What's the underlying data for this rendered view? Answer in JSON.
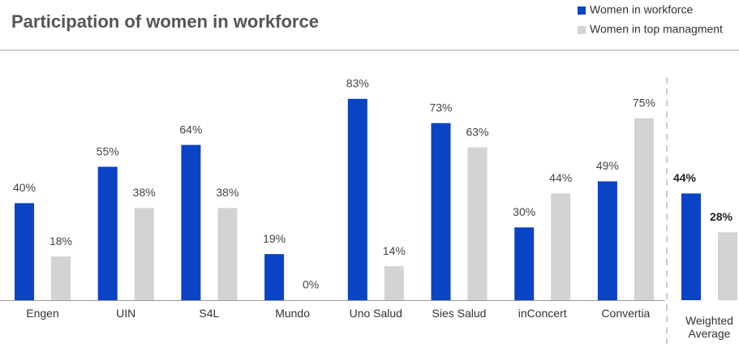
{
  "chart_data": {
    "type": "bar",
    "title": "Participation of women in workforce",
    "categories": [
      "Engen",
      "UIN",
      "S4L",
      "Mundo",
      "Uno Salud",
      "Sies Salud",
      "inConcert",
      "Convertia",
      "Weighted Average"
    ],
    "series": [
      {
        "name": "Women in workforce",
        "color": "#0a43c4",
        "values": [
          40,
          55,
          64,
          19,
          83,
          73,
          30,
          49,
          44
        ],
        "value_labels": [
          "40%",
          "55%",
          "64%",
          "19%",
          "83%",
          "73%",
          "30%",
          "49%",
          "44%"
        ]
      },
      {
        "name": "Women in top managment",
        "color": "#d1d3d4",
        "values": [
          18,
          38,
          38,
          0,
          14,
          63,
          44,
          75,
          28
        ],
        "value_labels": [
          "18%",
          "38%",
          "38%",
          "0%",
          "14%",
          "63%",
          "44%",
          "75%",
          "28%"
        ]
      }
    ]
  }
}
